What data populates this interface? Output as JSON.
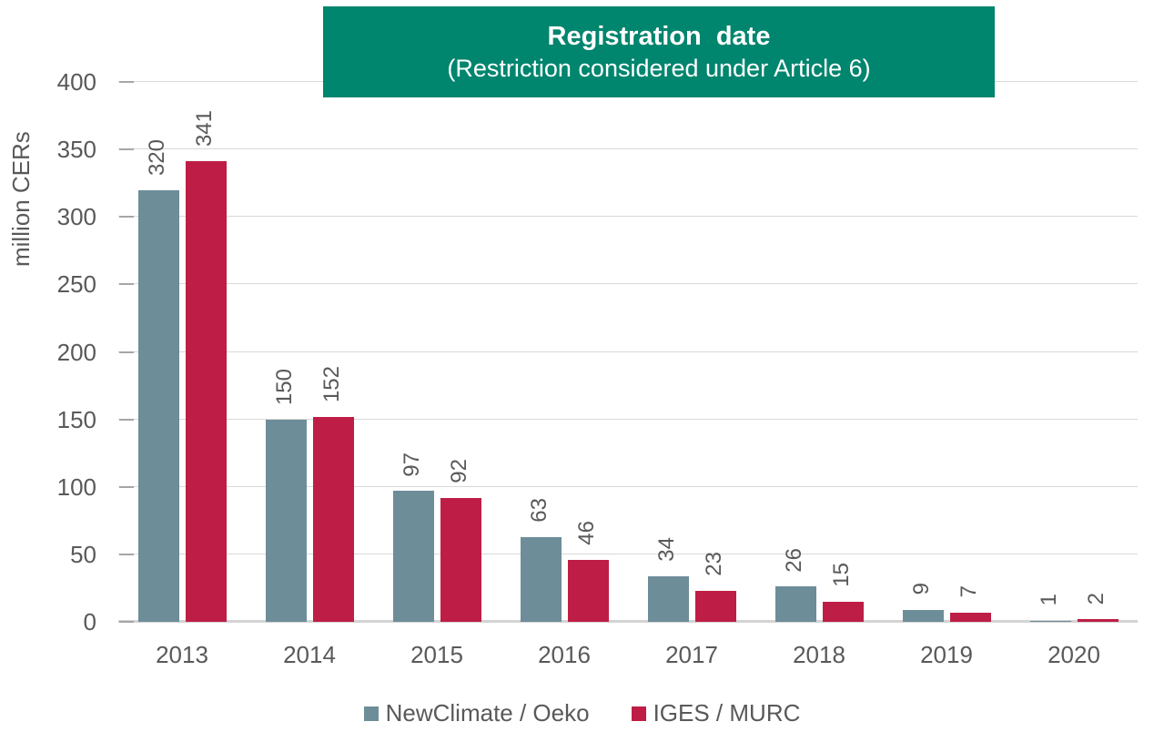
{
  "chart_data": {
    "type": "bar",
    "title": "Registration  date",
    "subtitle": "(Restriction considered under Article 6)",
    "ylabel": "million CERs",
    "xlabel": "",
    "categories": [
      "2013",
      "2014",
      "2015",
      "2016",
      "2017",
      "2018",
      "2019",
      "2020"
    ],
    "series": [
      {
        "name": "NewClimate / Oeko",
        "color": "#6D8D99",
        "values": [
          320,
          150,
          97,
          63,
          34,
          26,
          9,
          1
        ]
      },
      {
        "name": "IGES / MURC",
        "color": "#BE1E45",
        "values": [
          341,
          152,
          92,
          46,
          23,
          15,
          7,
          2
        ]
      }
    ],
    "ylim": [
      0,
      400
    ],
    "ytick_step": 50,
    "grid": true,
    "data_labels": "rotated-90-above-bars",
    "legend_position": "bottom"
  },
  "colors": {
    "title_bg": "#00856E",
    "title_text": "#FFFFFF",
    "axis_text": "#595959",
    "gridline": "#D9D9D9",
    "axis_line": "#D3D3D3",
    "tick_mark": "#A6A6A6",
    "background": "#FFFFFF"
  }
}
